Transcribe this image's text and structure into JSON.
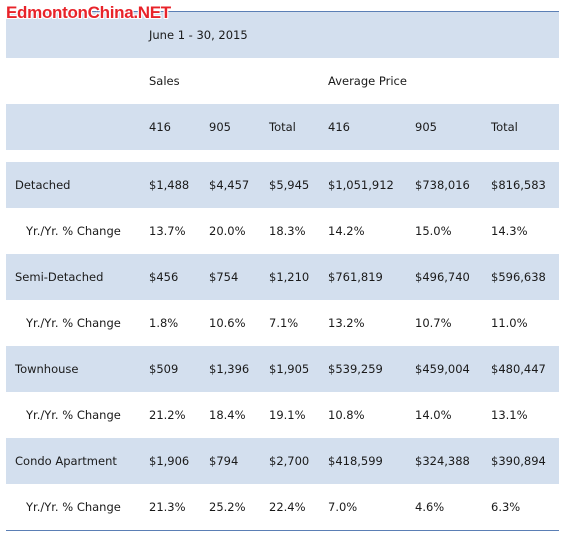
{
  "watermark": "EdmontonChina.NET",
  "header": {
    "date_range": "June 1 - 30, 2015",
    "group_sales": "Sales",
    "group_price": "Average Price",
    "columns": [
      "416",
      "905",
      "Total",
      "416",
      "905",
      "Total"
    ]
  },
  "rows": [
    {
      "label": "Detached",
      "values": [
        "$1,488",
        "$4,457",
        "$5,945",
        "$1,051,912",
        "$738,016",
        "$816,583"
      ]
    },
    {
      "label": "Yr./Yr. % Change",
      "values": [
        "13.7%",
        "20.0%",
        "18.3%",
        "14.2%",
        "15.0%",
        "14.3%"
      ]
    },
    {
      "label": "Semi-Detached",
      "values": [
        "$456",
        "$754",
        "$1,210",
        "$761,819",
        "$496,740",
        "$596,638"
      ]
    },
    {
      "label": "Yr./Yr. % Change",
      "values": [
        "1.8%",
        "10.6%",
        "7.1%",
        "13.2%",
        "10.7%",
        "11.0%"
      ]
    },
    {
      "label": "Townhouse",
      "values": [
        "$509",
        "$1,396",
        "$1,905",
        "$539,259",
        "$459,004",
        "$480,447"
      ]
    },
    {
      "label": "Yr./Yr. % Change",
      "values": [
        "21.2%",
        "18.4%",
        "19.1%",
        "10.8%",
        "14.0%",
        "13.1%"
      ]
    },
    {
      "label": "Condo Apartment",
      "values": [
        "$1,906",
        "$794",
        "$2,700",
        "$418,599",
        "$324,388",
        "$390,894"
      ]
    },
    {
      "label": "Yr./Yr. % Change",
      "values": [
        "21.3%",
        "25.2%",
        "22.4%",
        "7.0%",
        "4.6%",
        "6.3%"
      ]
    }
  ],
  "colors": {
    "shade": "#d3dfee",
    "rule": "#5b7fb5",
    "watermark": "#e8232a"
  }
}
